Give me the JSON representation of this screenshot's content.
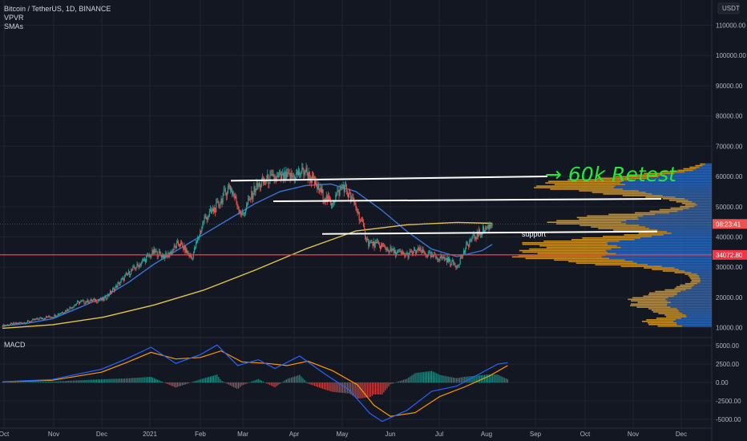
{
  "legend": {
    "symbol": "Bitcoin / TetherUS, 1D, BINANCE",
    "indicator_1": "VPVR",
    "indicator_2": "SMAs"
  },
  "currency_button": "USDT",
  "macd_label": "MACD",
  "chart_data": [
    {
      "type": "candlestick",
      "price_axis": [
        "110000.00",
        "100000.00",
        "90000.00",
        "80000.00",
        "70000.00",
        "60000.00",
        "50000.00",
        "40000.00",
        "30000.00",
        "20000.00",
        "10000.00"
      ],
      "ylim": [
        7000,
        117000
      ],
      "time_axis": [
        "Oct",
        "Nov",
        "Dec",
        "2021",
        "Feb",
        "Mar",
        "Apr",
        "May",
        "Jun",
        "Jul",
        "Aug",
        "Sep",
        "Oct",
        "Nov",
        "Dec"
      ],
      "current_price_tag": "08:23:41",
      "current_price": 44300,
      "red_level_tag": "34072.80",
      "red_level": 34072.8,
      "series": [
        {
          "kind": "close",
          "points": [
            [
              0,
              10700
            ],
            [
              15,
              11300
            ],
            [
              30,
              11900
            ],
            [
              45,
              13100
            ],
            [
              60,
              13800
            ],
            [
              75,
              15600
            ],
            [
              90,
              18300
            ],
            [
              105,
              18900
            ],
            [
              120,
              19200
            ],
            [
              135,
              23500
            ],
            [
              150,
              28000
            ],
            [
              165,
              31500
            ],
            [
              180,
              35000
            ],
            [
              195,
              33500
            ],
            [
              210,
              38000
            ],
            [
              225,
              33000
            ],
            [
              240,
              46000
            ],
            [
              255,
              50000
            ],
            [
              270,
              57000
            ],
            [
              285,
              47000
            ],
            [
              300,
              56000
            ],
            [
              315,
              59000
            ],
            [
              330,
              59500
            ],
            [
              345,
              60000
            ],
            [
              360,
              62000
            ],
            [
              375,
              56000
            ],
            [
              390,
              51000
            ],
            [
              405,
              57000
            ],
            [
              420,
              50000
            ],
            [
              435,
              38000
            ],
            [
              450,
              37000
            ],
            [
              465,
              35000
            ],
            [
              480,
              34000
            ],
            [
              495,
              35500
            ],
            [
              510,
              33500
            ],
            [
              525,
              33000
            ],
            [
              540,
              30500
            ],
            [
              555,
              38500
            ],
            [
              570,
              42000
            ],
            [
              582,
              44300
            ]
          ]
        },
        {
          "kind": "sma_fast",
          "color": "#3a74d6",
          "points": [
            [
              0,
              10500
            ],
            [
              30,
              11500
            ],
            [
              60,
              13000
            ],
            [
              90,
              16500
            ],
            [
              120,
              20000
            ],
            [
              150,
              25000
            ],
            [
              180,
              31000
            ],
            [
              210,
              36000
            ],
            [
              240,
              41000
            ],
            [
              270,
              46000
            ],
            [
              300,
              51000
            ],
            [
              330,
              55000
            ],
            [
              360,
              57000
            ],
            [
              390,
              57500
            ],
            [
              420,
              55000
            ],
            [
              450,
              49000
            ],
            [
              480,
              42000
            ],
            [
              510,
              36000
            ],
            [
              540,
              33500
            ],
            [
              570,
              35500
            ],
            [
              582,
              37500
            ]
          ]
        },
        {
          "kind": "sma_slow",
          "color": "#e5c548",
          "points": [
            [
              0,
              9800
            ],
            [
              60,
              11000
            ],
            [
              120,
              13500
            ],
            [
              180,
              17500
            ],
            [
              240,
              22500
            ],
            [
              300,
              29000
            ],
            [
              360,
              36000
            ],
            [
              420,
              42000
            ],
            [
              480,
              44000
            ],
            [
              540,
              44800
            ],
            [
              582,
              44500
            ]
          ]
        }
      ]
    },
    {
      "type": "bar",
      "title": "MACD",
      "value_axis": [
        "5000.00",
        "2500.00",
        "0.00",
        "-2500.00",
        "-5000.00"
      ],
      "ylim": [
        -6000,
        6000
      ],
      "macd_line": [
        [
          0,
          100
        ],
        [
          60,
          400
        ],
        [
          120,
          1800
        ],
        [
          150,
          3200
        ],
        [
          180,
          4800
        ],
        [
          210,
          2600
        ],
        [
          240,
          3800
        ],
        [
          260,
          5100
        ],
        [
          285,
          2300
        ],
        [
          310,
          3100
        ],
        [
          330,
          1900
        ],
        [
          360,
          3600
        ],
        [
          390,
          1200
        ],
        [
          420,
          -1000
        ],
        [
          445,
          -4200
        ],
        [
          460,
          -5300
        ],
        [
          490,
          -3800
        ],
        [
          520,
          -1200
        ],
        [
          550,
          -500
        ],
        [
          580,
          1300
        ],
        [
          600,
          2500
        ],
        [
          612,
          2700
        ]
      ],
      "signal_line": [
        [
          0,
          80
        ],
        [
          60,
          300
        ],
        [
          120,
          1400
        ],
        [
          150,
          2700
        ],
        [
          180,
          4100
        ],
        [
          210,
          3200
        ],
        [
          240,
          3400
        ],
        [
          265,
          4300
        ],
        [
          290,
          2800
        ],
        [
          320,
          2600
        ],
        [
          345,
          2300
        ],
        [
          370,
          2900
        ],
        [
          400,
          1600
        ],
        [
          430,
          -300
        ],
        [
          450,
          -3100
        ],
        [
          470,
          -4600
        ],
        [
          500,
          -4100
        ],
        [
          530,
          -1900
        ],
        [
          560,
          -600
        ],
        [
          590,
          900
        ],
        [
          612,
          2300
        ]
      ]
    }
  ],
  "annotations": {
    "support_label": "support",
    "handwritten_note": "→ 60k Retest"
  },
  "colors": {
    "background": "#131722",
    "up": "#26a69a",
    "down": "#ef5350",
    "grid": "#1f2430",
    "vpvr_up": "#2f6bbf",
    "vpvr_down": "#d99b28",
    "hand": "#22e83a",
    "red_level": "#f23645"
  }
}
